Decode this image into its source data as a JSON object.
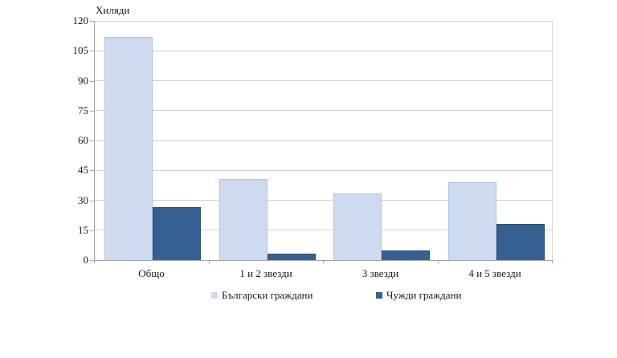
{
  "chart_data": {
    "type": "bar",
    "title": "",
    "ylabel": "Хиляди",
    "xlabel": "",
    "categories": [
      "Общо",
      "1 и 2 звезди",
      "3 звезди",
      "4 и 5 звезди"
    ],
    "series": [
      {
        "name": "Български граждани",
        "color": "#CDDAF0",
        "border_color": "#AFC4E2",
        "values": [
          112,
          40.5,
          33.5,
          39
        ]
      },
      {
        "name": "Чужди граждани",
        "color": "#366092",
        "border_color": "#2C5079",
        "values": [
          26.5,
          3.3,
          4.8,
          18
        ]
      }
    ],
    "ylim": [
      0,
      120
    ],
    "yticks": [
      0,
      15,
      30,
      45,
      60,
      75,
      90,
      105,
      120
    ],
    "grid": true,
    "legend_position": "bottom"
  },
  "style_colors": {
    "gridline": "#d0d0d0",
    "axis": "#a5a5a5",
    "text": "#1a1a1a"
  }
}
